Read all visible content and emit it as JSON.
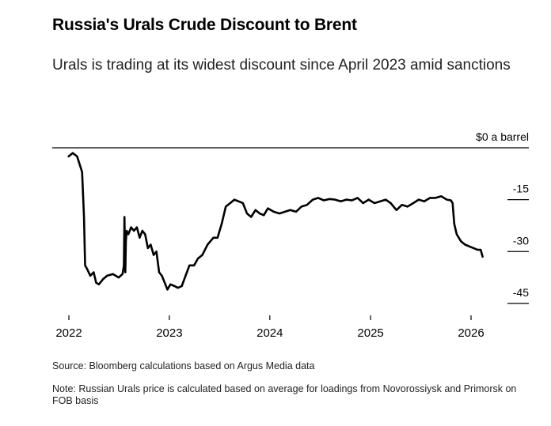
{
  "header": {
    "title": "Russia's Urals Crude Discount to Brent",
    "subtitle": "Urals is trading at its widest discount since April 2023 amid sanctions"
  },
  "footer": {
    "source": "Source: Bloomberg calculations based on Argus Media data",
    "note": "Note: Russian Urals price is calculated based on average for loadings from Novorossiysk and Primorsk on FOB basis"
  },
  "chart_data": {
    "type": "line",
    "title": "Russia's Urals Crude Discount to Brent",
    "subtitle": "Urals is trading at its widest discount since April 2023 amid sanctions",
    "xlabel": "",
    "ylabel": "",
    "xlim": [
      "2022-01-01",
      "2026-03-01"
    ],
    "ylim": [
      -48,
      0
    ],
    "x_ticks": [
      {
        "label": "2022",
        "value": "2022-01-01"
      },
      {
        "label": "2023",
        "value": "2023-01-01"
      },
      {
        "label": "2024",
        "value": "2024-01-01"
      },
      {
        "label": "2025",
        "value": "2025-01-01"
      },
      {
        "label": "2026",
        "value": "2026-01-01"
      }
    ],
    "y_ticks": [
      {
        "label": "$0 a barrel",
        "value": 0
      },
      {
        "label": "-15",
        "value": -15
      },
      {
        "label": "-30",
        "value": -30
      },
      {
        "label": "-45",
        "value": -45
      }
    ],
    "grid": "horizontal-ticks-right",
    "colors": {
      "line": "#000000",
      "axis": "#000000"
    },
    "series": [
      {
        "x": [
          "2021-12-31",
          "2022-01-15",
          "2022-01-31",
          "2022-02-10",
          "2022-02-18",
          "2022-02-25",
          "2022-03-01",
          "2022-03-08",
          "2022-03-20",
          "2022-04-01",
          "2022-04-10",
          "2022-04-20",
          "2022-05-05",
          "2022-05-20",
          "2022-06-10",
          "2022-07-01",
          "2022-07-15",
          "2022-07-20",
          "2022-07-22",
          "2022-07-25",
          "2022-07-27",
          "2022-07-30",
          "2022-08-05",
          "2022-08-15",
          "2022-08-25",
          "2022-09-05",
          "2022-09-15",
          "2022-09-25",
          "2022-10-05",
          "2022-10-15",
          "2022-10-25",
          "2022-11-05",
          "2022-11-15",
          "2022-11-25",
          "2022-12-05",
          "2022-12-15",
          "2022-12-25",
          "2023-01-05",
          "2023-01-20",
          "2023-02-01",
          "2023-02-15",
          "2023-03-01",
          "2023-03-15",
          "2023-04-01",
          "2023-04-15",
          "2023-05-01",
          "2023-05-20",
          "2023-06-10",
          "2023-06-25",
          "2023-07-10",
          "2023-07-25",
          "2023-08-10",
          "2023-08-25",
          "2023-09-10",
          "2023-09-25",
          "2023-10-10",
          "2023-10-25",
          "2023-11-10",
          "2023-11-25",
          "2023-12-10",
          "2023-12-25",
          "2024-01-15",
          "2024-02-05",
          "2024-02-25",
          "2024-03-15",
          "2024-04-05",
          "2024-04-25",
          "2024-05-15",
          "2024-06-05",
          "2024-06-25",
          "2024-07-15",
          "2024-08-05",
          "2024-08-25",
          "2024-09-15",
          "2024-10-05",
          "2024-10-25",
          "2024-11-15",
          "2024-12-05",
          "2024-12-25",
          "2025-01-15",
          "2025-02-05",
          "2025-02-25",
          "2025-03-15",
          "2025-04-05",
          "2025-04-25",
          "2025-05-15",
          "2025-06-05",
          "2025-06-25",
          "2025-07-15",
          "2025-08-05",
          "2025-08-25",
          "2025-09-15",
          "2025-10-05",
          "2025-10-20",
          "2025-10-26",
          "2025-11-01",
          "2025-11-10",
          "2025-11-25",
          "2025-12-10",
          "2025-12-25",
          "2026-01-10",
          "2026-01-25",
          "2026-02-05",
          "2026-02-12"
        ],
        "values": [
          -2.5,
          -1.5,
          -2.5,
          -5,
          -7,
          -20,
          -34,
          -35,
          -37,
          -36,
          -39,
          -39.5,
          -38,
          -37,
          -36.5,
          -37.5,
          -36.5,
          -34,
          -20,
          -36,
          -27,
          -24,
          -25,
          -23,
          -24,
          -23,
          -26,
          -24,
          -25,
          -29,
          -28,
          -31,
          -30,
          -36,
          -37,
          -39,
          -41,
          -39.5,
          -40,
          -40.5,
          -40,
          -37,
          -34,
          -34,
          -32,
          -31,
          -28,
          -26,
          -26,
          -22,
          -17,
          -16,
          -15,
          -15.5,
          -16,
          -19,
          -20,
          -18,
          -19,
          -19.5,
          -17.5,
          -18.5,
          -19,
          -18.5,
          -18,
          -18.5,
          -17,
          -16.5,
          -15,
          -14.5,
          -15.2,
          -14.8,
          -15,
          -15.5,
          -15,
          -15.2,
          -14.5,
          -16,
          -15,
          -16,
          -15.5,
          -15,
          -16,
          -18,
          -16.5,
          -17,
          -16,
          -15,
          -15.5,
          -14.5,
          -14.5,
          -14,
          -15,
          -15.2,
          -16,
          -22,
          -25,
          -27,
          -28,
          -28.5,
          -29,
          -29.5,
          -29.5,
          -31.5
        ]
      }
    ]
  }
}
